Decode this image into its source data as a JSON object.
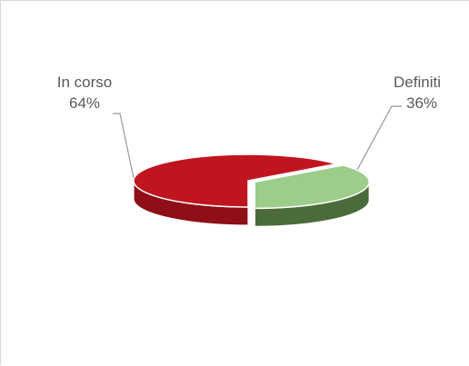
{
  "chart_data": {
    "type": "pie",
    "style": "3d",
    "slices": [
      {
        "label": "In corso",
        "value": 64,
        "value_label": "64%",
        "color": "#c0151f",
        "side_color": "#8e0f17"
      },
      {
        "label": "Definiti",
        "value": 36,
        "value_label": "36%",
        "color": "#9ccd8a",
        "side_color": "#4b6b3b"
      }
    ],
    "label_color": "#595959",
    "leader_color": "#a6a6a6"
  }
}
